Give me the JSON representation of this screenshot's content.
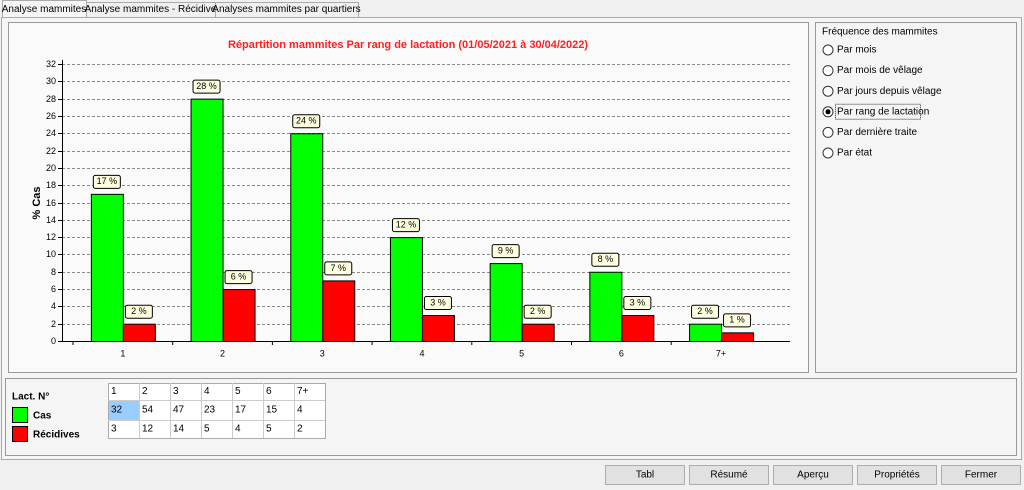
{
  "tabs": [
    "Analyse mammites",
    "Analyse mammites - Récidive",
    "Analyses mammites par quartiers"
  ],
  "selected_tab": 0,
  "chart_data": {
    "type": "bar",
    "title": "Répartition mammites Par rang de lactation (01/05/2021 à 30/04/2022)",
    "y_label": "% Cas",
    "categories": [
      "1",
      "2",
      "3",
      "4",
      "5",
      "6",
      "7+"
    ],
    "series": [
      {
        "name": "Cas",
        "color": "#00ff00",
        "values": [
          17,
          28,
          24,
          12,
          9,
          8,
          2
        ],
        "value_labels": [
          "17 %",
          "28 %",
          "24 %",
          "12 %",
          "9 %",
          "8 %",
          "2 %"
        ]
      },
      {
        "name": "Récidives",
        "color": "#ff0000",
        "values": [
          2,
          6,
          7,
          3,
          2,
          3,
          1
        ],
        "value_labels": [
          "2 %",
          "6 %",
          "7 %",
          "3 %",
          "2 %",
          "3 %",
          "1 %"
        ]
      }
    ],
    "ylim": [
      0,
      32
    ],
    "yticks": [
      0,
      2,
      4,
      6,
      8,
      10,
      12,
      14,
      16,
      18,
      20,
      22,
      24,
      26,
      28,
      30,
      32
    ],
    "grid": true
  },
  "frequency_panel": {
    "title": "Fréquence des mammites",
    "options": [
      "Par mois",
      "Par mois de vêlage",
      "Par jours depuis vêlage",
      "Par rang de lactation",
      "Par dernière traite",
      "Par état"
    ],
    "selected": 3
  },
  "table": {
    "header_label": "Lact. N°",
    "rows": [
      [
        32,
        54,
        47,
        23,
        17,
        15,
        4
      ],
      [
        3,
        12,
        14,
        5,
        4,
        5,
        2
      ]
    ]
  },
  "buttons": [
    "Tabl",
    "Résumé",
    "Aperçu",
    "Propriétés",
    "Fermer"
  ]
}
